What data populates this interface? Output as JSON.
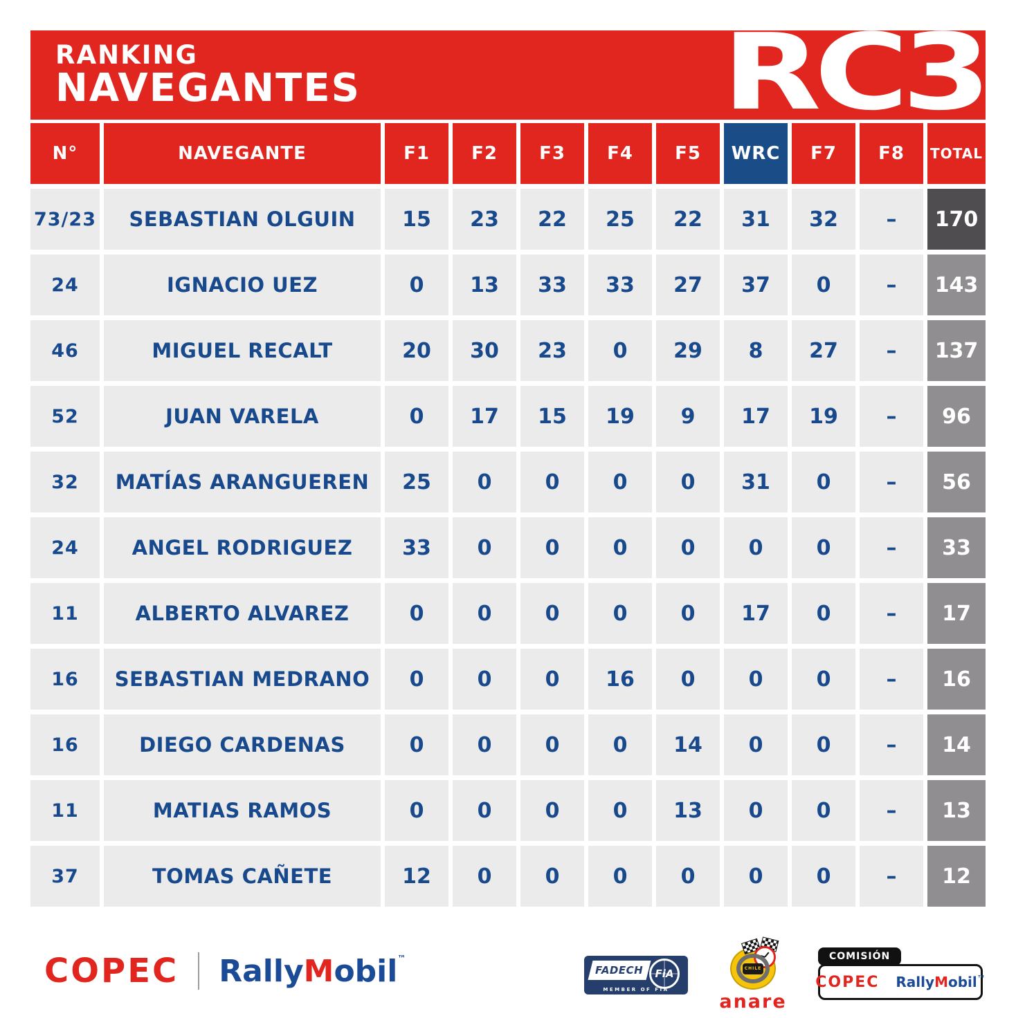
{
  "header": {
    "title_line1": "RANKING",
    "title_line2": "NAVEGANTES",
    "category": "RC3"
  },
  "chart_data": {
    "type": "table",
    "title": "RANKING NAVEGANTES",
    "category": "RC3",
    "columns": [
      "N°",
      "NAVEGANTE",
      "F1",
      "F2",
      "F3",
      "F4",
      "F5",
      "WRC",
      "F7",
      "F8",
      "TOTAL"
    ],
    "rows": [
      {
        "num": "73/23",
        "name": "SEBASTIAN OLGUIN",
        "scores": [
          "15",
          "23",
          "22",
          "25",
          "22",
          "31",
          "32",
          "–"
        ],
        "total": "170"
      },
      {
        "num": "24",
        "name": "IGNACIO UEZ",
        "scores": [
          "0",
          "13",
          "33",
          "33",
          "27",
          "37",
          "0",
          "–"
        ],
        "total": "143"
      },
      {
        "num": "46",
        "name": "MIGUEL RECALT",
        "scores": [
          "20",
          "30",
          "23",
          "0",
          "29",
          "8",
          "27",
          "–"
        ],
        "total": "137"
      },
      {
        "num": "52",
        "name": "JUAN VARELA",
        "scores": [
          "0",
          "17",
          "15",
          "19",
          "9",
          "17",
          "19",
          "–"
        ],
        "total": "96"
      },
      {
        "num": "32",
        "name": "MATÍAS ARANGUEREN",
        "scores": [
          "25",
          "0",
          "0",
          "0",
          "0",
          "31",
          "0",
          "–"
        ],
        "total": "56"
      },
      {
        "num": "24",
        "name": "ANGEL RODRIGUEZ",
        "scores": [
          "33",
          "0",
          "0",
          "0",
          "0",
          "0",
          "0",
          "–"
        ],
        "total": "33"
      },
      {
        "num": "11",
        "name": "ALBERTO ALVAREZ",
        "scores": [
          "0",
          "0",
          "0",
          "0",
          "0",
          "17",
          "0",
          "–"
        ],
        "total": "17"
      },
      {
        "num": "16",
        "name": "SEBASTIAN MEDRANO",
        "scores": [
          "0",
          "0",
          "0",
          "16",
          "0",
          "0",
          "0",
          "–"
        ],
        "total": "16"
      },
      {
        "num": "16",
        "name": "DIEGO CARDENAS",
        "scores": [
          "0",
          "0",
          "0",
          "0",
          "14",
          "0",
          "0",
          "–"
        ],
        "total": "14"
      },
      {
        "num": "11",
        "name": "MATIAS RAMOS",
        "scores": [
          "0",
          "0",
          "0",
          "0",
          "13",
          "0",
          "0",
          "–"
        ],
        "total": "13"
      },
      {
        "num": "37",
        "name": "TOMAS CAÑETE",
        "scores": [
          "12",
          "0",
          "0",
          "0",
          "0",
          "0",
          "0",
          "–"
        ],
        "total": "12"
      }
    ]
  },
  "footer": {
    "copec": "COPEC",
    "rallymobil": {
      "part1": "Rally",
      "part2": "M",
      "part3": "obil",
      "tm": "™"
    },
    "fadech": {
      "name": "FADECH",
      "fia": "FiA",
      "member": "MEMBER OF FIA"
    },
    "anare": {
      "chile": "CHILE",
      "name": "anare"
    },
    "comision": {
      "tab": "COMISIÓN",
      "copec": "COPEC",
      "rm1": "Rally",
      "rm2": "M",
      "rm3": "obil",
      "tm": "™"
    }
  },
  "colors": {
    "red": "#e12620",
    "wrc_blue": "#1a4d88",
    "text_navy": "#17498c",
    "cell_gray": "#ebebec",
    "total_gray": "#908e90",
    "total_dark": "#4f4d4f"
  }
}
